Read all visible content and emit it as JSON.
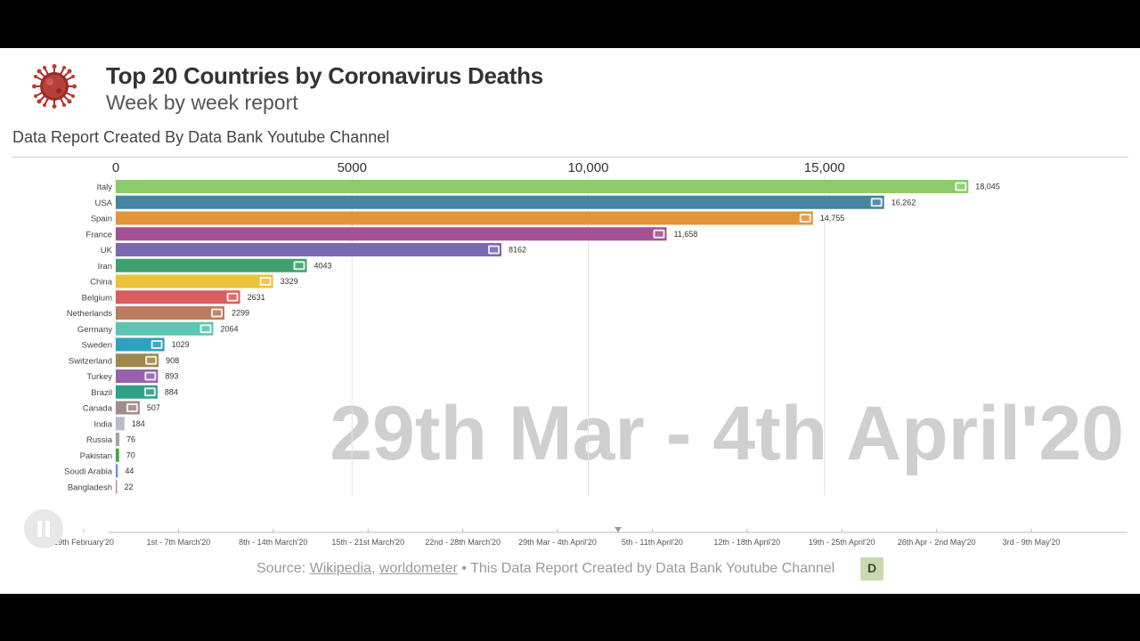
{
  "header": {
    "title": "Top 20 Countries by Coronavirus Deaths",
    "subtitle": "Week by week report",
    "caption": "Data Report Created By Data Bank Youtube Channel"
  },
  "colors": {
    "Italy": "#8cca6a",
    "USA": "#46849f",
    "Spain": "#e3943b",
    "France": "#a45294",
    "UK": "#7b68b2",
    "Iran": "#3da26d",
    "China": "#ebc23c",
    "Belgium": "#d85e5e",
    "Netherlands": "#ba7c60",
    "Germany": "#5fc4b4",
    "Sweden": "#2ea1c1",
    "Switzerland": "#9c8949",
    "Turkey": "#9861ad",
    "Brazil": "#2f9f86",
    "Canada": "#a08c8c",
    "India": "#b9bcc7",
    "Russia": "#a4a4a4",
    "Pakistan": "#40a845",
    "Soudi Arabia": "#6c8fd6",
    "Bangladesh": "#c08caf"
  },
  "chart_data": {
    "type": "bar",
    "orientation": "horizontal",
    "title": "Top 20 Countries by Coronavirus Deaths",
    "subtitle": "Week by week report",
    "current_period": "29th Mar - 4th April'20",
    "categories": [
      "Italy",
      "USA",
      "Spain",
      "France",
      "UK",
      "Iran",
      "China",
      "Belgium",
      "Netherlands",
      "Germany",
      "Sweden",
      "Switzerland",
      "Turkey",
      "Brazil",
      "Canada",
      "India",
      "Russia",
      "Pakistan",
      "Soudi Arabia",
      "Bangladesh"
    ],
    "values": [
      18045,
      16262,
      14755,
      11658,
      8162,
      4043,
      3329,
      2631,
      2299,
      2064,
      1029,
      908,
      893,
      884,
      507,
      184,
      76,
      70,
      44,
      22
    ],
    "value_labels": [
      "18,045",
      "16,262",
      "14,755",
      "11,658",
      "8162",
      "4043",
      "3329",
      "2631",
      "2299",
      "2064",
      "1029",
      "908",
      "893",
      "884",
      "507",
      "184",
      "76",
      "70",
      "44",
      "22"
    ],
    "x_ticks": [
      0,
      5000,
      10000,
      15000
    ],
    "x_tick_labels": [
      "0",
      "5000",
      "10,000",
      "15,000"
    ],
    "xlim": [
      0,
      18850
    ],
    "grid": true,
    "timeline": [
      "29th February'20",
      "1st - 7th March'20",
      "8th - 14th March'20",
      "15th - 21st March'20",
      "22nd - 28th March'20",
      "29th Mar - 4th April'20",
      "5th - 11th April'20",
      "12th - 18th April'20",
      "19th - 25th April'20",
      "26th Apr - 2nd May'20",
      "3rd - 9th May'20"
    ]
  },
  "footer": {
    "source_prefix": "Source:",
    "link_wikipedia": "Wikipedia",
    "link_worldometer": "worldometer",
    "source_suffix": "• This Data Report Created by Data Bank Youtube Channel",
    "logo_letter": "D"
  }
}
